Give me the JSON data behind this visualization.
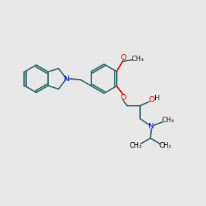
{
  "bg_color": "#e8e8e8",
  "bond_color": "#2d6b6b",
  "N_color": "#0000ee",
  "O_color": "#dd0000",
  "line_width": 1.4,
  "xlim": [
    0,
    10
  ],
  "ylim": [
    0,
    10
  ]
}
